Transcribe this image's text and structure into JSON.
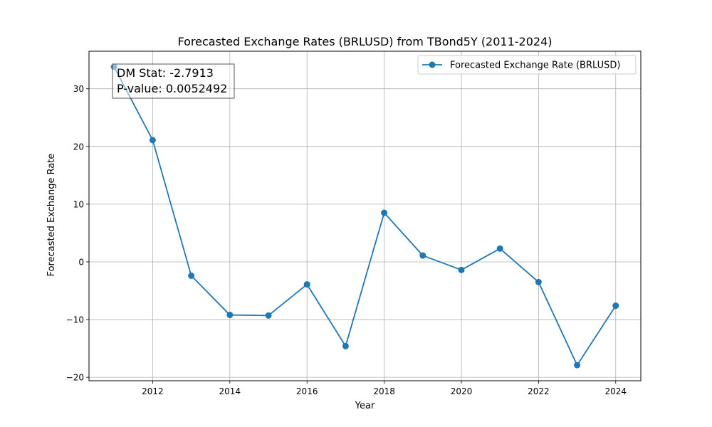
{
  "chart_data": {
    "type": "line",
    "title": "Forecasted Exchange Rates (BRLUSD) from TBond5Y (2011-2024)",
    "xlabel": "Year",
    "ylabel": "Forecasted Exchange Rate",
    "xlim": [
      2010.35,
      2024.65
    ],
    "ylim": [
      -20.6,
      36.5
    ],
    "xticks": [
      2012,
      2014,
      2016,
      2018,
      2020,
      2022,
      2024
    ],
    "yticks": [
      -20,
      -10,
      0,
      10,
      20,
      30
    ],
    "ytick_labels": [
      "−20",
      "−10",
      "0",
      "10",
      "20",
      "30"
    ],
    "grid": true,
    "legend": {
      "placement": "top-right"
    },
    "series": [
      {
        "name": "Forecasted Exchange Rate (BRLUSD)",
        "color": "#1f77b4",
        "marker": "circle",
        "x": [
          2011,
          2012,
          2013,
          2014,
          2015,
          2016,
          2017,
          2018,
          2019,
          2020,
          2021,
          2022,
          2023,
          2024
        ],
        "y": [
          33.8,
          21.1,
          -2.4,
          -9.2,
          -9.3,
          -3.9,
          -14.6,
          8.5,
          1.1,
          -1.4,
          2.3,
          -3.5,
          -17.9,
          -7.6
        ]
      }
    ],
    "annotation": {
      "lines": [
        "DM Stat: -2.7913",
        "P-value: 0.0052492"
      ],
      "placement": "top-left"
    }
  }
}
